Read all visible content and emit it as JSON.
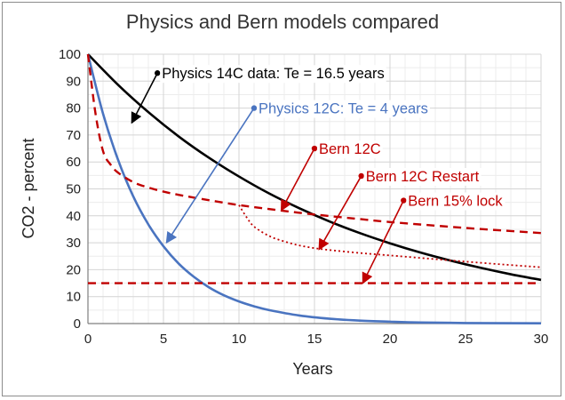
{
  "chart_data": {
    "type": "line",
    "title": "Physics and Bern models compared",
    "xlabel": "Years",
    "ylabel": "CO2 - percent",
    "xlim": [
      0,
      30
    ],
    "ylim": [
      0,
      100
    ],
    "xticks": [
      0,
      5,
      10,
      15,
      20,
      25,
      30
    ],
    "yticks": [
      0,
      10,
      20,
      30,
      40,
      50,
      60,
      70,
      80,
      90,
      100
    ],
    "grid": true,
    "series": [
      {
        "name": "Physics 14C data: Te = 16.5 years",
        "color": "#000000",
        "style": "solid",
        "x": [
          0,
          2,
          4,
          6,
          8,
          10,
          12,
          14,
          16,
          18,
          20,
          22,
          24,
          26,
          28,
          30
        ],
        "y": [
          100,
          88.6,
          78.5,
          69.5,
          61.6,
          54.6,
          48.3,
          42.8,
          37.9,
          33.6,
          29.8,
          26.4,
          23.4,
          20.7,
          18.3,
          16.2
        ]
      },
      {
        "name": "Physics 12C: Te = 4 years",
        "color": "#4a74c0",
        "style": "solid",
        "x": [
          0,
          1,
          2,
          3,
          4,
          5,
          6,
          7,
          8,
          9,
          10,
          11,
          12,
          14,
          16,
          18,
          20,
          22,
          25,
          30
        ],
        "y": [
          100,
          77.9,
          60.7,
          47.2,
          36.8,
          28.7,
          22.3,
          17.4,
          13.5,
          10.5,
          8.2,
          6.4,
          5.0,
          3.0,
          1.8,
          1.1,
          0.7,
          0.4,
          0.2,
          0.1
        ]
      },
      {
        "name": "Bern 12C",
        "color": "#c00000",
        "style": "dashed",
        "x": [
          0,
          0.5,
          1,
          1.5,
          2,
          3,
          4,
          5,
          6,
          8,
          10,
          12,
          15,
          18,
          20,
          25,
          30
        ],
        "y": [
          100,
          78,
          64,
          59,
          56,
          52.5,
          50.5,
          49,
          47.8,
          45.8,
          44,
          42.5,
          40.5,
          38.8,
          37.7,
          35.5,
          33.6
        ]
      },
      {
        "name": "Bern 12C Restart",
        "color": "#c00000",
        "style": "dotted",
        "x": [
          10,
          10.5,
          11,
          12,
          13,
          14,
          15,
          16,
          18,
          20,
          25,
          30
        ],
        "y": [
          44,
          39.5,
          36,
          32.5,
          30.5,
          29,
          28,
          27.3,
          26.2,
          25.3,
          23,
          20.9
        ]
      },
      {
        "name": "Bern 15% lock",
        "color": "#c00000",
        "style": "dashed",
        "x": [
          0,
          30
        ],
        "y": [
          15,
          15
        ]
      }
    ],
    "annotations": [
      {
        "text": "Physics 14C data: Te = 16.5 years",
        "color": "#000000",
        "arrow_from": [
          4.6,
          93
        ],
        "arrow_to": [
          2.9,
          74.5
        ]
      },
      {
        "text": "Physics 12C: Te = 4 years",
        "color": "#4a74c0",
        "arrow_from": [
          11,
          80
        ],
        "arrow_to": [
          5.2,
          30
        ]
      },
      {
        "text": "Bern 12C",
        "color": "#c00000",
        "arrow_from": [
          15,
          65
        ],
        "arrow_to": [
          12.8,
          42
        ]
      },
      {
        "text": "Bern 12C Restart",
        "color": "#c00000",
        "arrow_from": [
          18.1,
          54.8
        ],
        "arrow_to": [
          15.3,
          27.5
        ]
      },
      {
        "text": "Bern 15% lock",
        "color": "#c00000",
        "arrow_from": [
          20.9,
          45.7
        ],
        "arrow_to": [
          18.2,
          15
        ]
      }
    ]
  }
}
